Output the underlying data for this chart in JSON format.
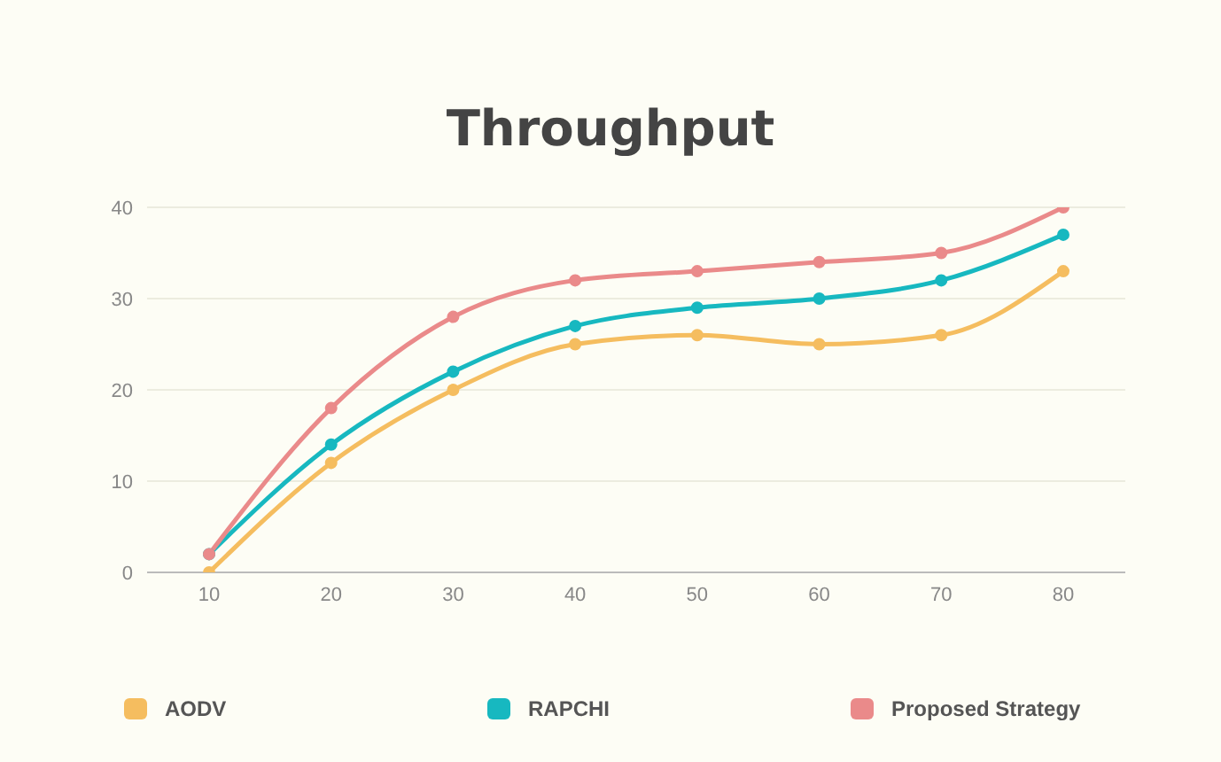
{
  "chart_data": {
    "type": "line",
    "title": "Throughput",
    "categories": [
      "10",
      "20",
      "30",
      "40",
      "50",
      "60",
      "70",
      "80"
    ],
    "series": [
      {
        "name": "AODV",
        "color": "#f5bd5f",
        "values": [
          0,
          12,
          20,
          25,
          26,
          25,
          26,
          33
        ]
      },
      {
        "name": "RAPCHI",
        "color": "#17b8c0",
        "values": [
          2,
          14,
          22,
          27,
          29,
          30,
          32,
          37
        ]
      },
      {
        "name": "Proposed Strategy",
        "color": "#ea8a8a",
        "values": [
          2,
          18,
          28,
          32,
          33,
          34,
          35,
          40
        ]
      }
    ],
    "ylim": [
      0,
      40
    ],
    "yticks": [
      0,
      10,
      20,
      30,
      40
    ],
    "grid": "y",
    "legend": "bottom",
    "marker": "circle",
    "line_style": "solid"
  }
}
